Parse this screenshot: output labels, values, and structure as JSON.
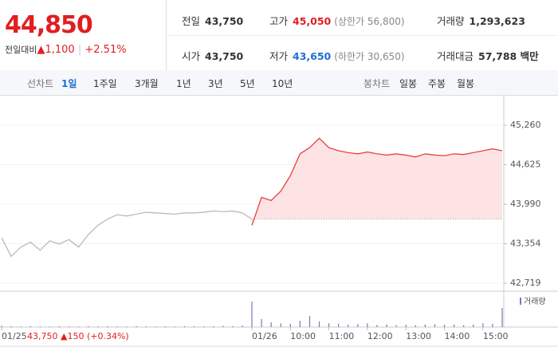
{
  "quote": {
    "price": "44,850",
    "change_label": "전일대비",
    "change": "▲1,100",
    "change_pct": "+2.51%"
  },
  "summary": [
    [
      {
        "label": "전일",
        "value": "43,750"
      },
      {
        "label": "고가",
        "value": "45,050",
        "note": "(상한가 56,800)"
      },
      {
        "label": "거래량",
        "value": "1,293,623"
      }
    ],
    [
      {
        "label": "시가",
        "value": "43,750"
      },
      {
        "label": "저가",
        "value": "43,650",
        "note": "(하한가 30,650)"
      },
      {
        "label": "거래대금",
        "value": "57,788 백만"
      }
    ]
  ],
  "tabs": {
    "label": "선차트",
    "items": [
      "1일",
      "1주일",
      "3개월",
      "1년",
      "3년",
      "5년",
      "10년"
    ]
  },
  "candle_tabs": {
    "label": "봉차트",
    "items": [
      "일봉",
      "주봉",
      "월봉"
    ]
  },
  "chart": {
    "type": "line",
    "xlim": [
      0,
      780
    ],
    "ylim": [
      42719,
      45260
    ],
    "yticks": [
      {
        "value": 45260,
        "label": "45,260"
      },
      {
        "value": 44625,
        "label": "44,625"
      },
      {
        "value": 43990,
        "label": "43,990"
      },
      {
        "value": 43354,
        "label": "43,354"
      },
      {
        "value": 42719,
        "label": "42,719"
      }
    ],
    "xticks": [
      {
        "value": 0,
        "label": "01/25"
      },
      {
        "value": 390,
        "label": "01/26"
      },
      {
        "value": 450,
        "label": "10:00"
      },
      {
        "value": 510,
        "label": "11:00"
      },
      {
        "value": 570,
        "label": "12:00"
      },
      {
        "value": 630,
        "label": "13:00"
      },
      {
        "value": 690,
        "label": "14:00"
      },
      {
        "value": 750,
        "label": "15:00"
      }
    ],
    "prev_info": "43,750 ▲150 (+0.34%)",
    "baseline": 43750,
    "grid": true,
    "x": [
      0,
      15,
      30,
      45,
      60,
      75,
      90,
      105,
      120,
      135,
      150,
      165,
      180,
      195,
      210,
      225,
      240,
      255,
      270,
      285,
      300,
      315,
      330,
      345,
      360,
      375,
      390,
      405,
      420,
      435,
      450,
      465,
      480,
      495,
      510,
      525,
      540,
      555,
      570,
      585,
      600,
      615,
      630,
      645,
      660,
      675,
      690,
      705,
      720,
      735,
      750,
      765,
      780
    ],
    "series": [
      {
        "color": "#b5b5b5",
        "values": [
          43450,
          43150,
          43300,
          43380,
          43250,
          43400,
          43350,
          43420,
          43300,
          43500,
          43650,
          43750,
          43820,
          43800,
          43830,
          43860,
          43850,
          43840,
          43830,
          43850,
          43850,
          43860,
          43880,
          43870,
          43880,
          43850,
          43750,
          null,
          null,
          null,
          null,
          null,
          null,
          null,
          null,
          null,
          null,
          null,
          null,
          null,
          null,
          null,
          null,
          null,
          null,
          null,
          null,
          null,
          null,
          null,
          null,
          null,
          null
        ]
      },
      {
        "color": "#e8342f",
        "fill": "#fde3e3",
        "values": [
          null,
          null,
          null,
          null,
          null,
          null,
          null,
          null,
          null,
          null,
          null,
          null,
          null,
          null,
          null,
          null,
          null,
          null,
          null,
          null,
          null,
          null,
          null,
          null,
          null,
          null,
          43650,
          44100,
          44050,
          44200,
          44450,
          44800,
          44900,
          45050,
          44900,
          44850,
          44820,
          44800,
          44830,
          44800,
          44780,
          44800,
          44780,
          44750,
          44800,
          44780,
          44770,
          44800,
          44790,
          44820,
          44850,
          44880,
          44850
        ]
      }
    ],
    "volume_label": "거래량",
    "volume_color": "#8b6fc0",
    "volume_lim": [
      0,
      100
    ],
    "volume": [
      4,
      3,
      2,
      3,
      2,
      2,
      3,
      2,
      2,
      3,
      2,
      3,
      2,
      2,
      3,
      2,
      2,
      3,
      2,
      3,
      3,
      2,
      3,
      4,
      3,
      5,
      80,
      25,
      15,
      12,
      10,
      20,
      35,
      18,
      12,
      10,
      8,
      9,
      12,
      7,
      8,
      6,
      7,
      6,
      8,
      9,
      7,
      8,
      6,
      8,
      12,
      10,
      60
    ]
  }
}
